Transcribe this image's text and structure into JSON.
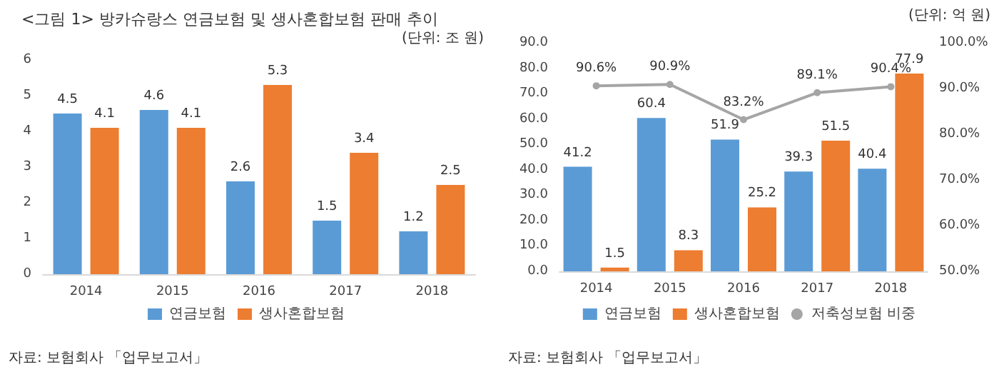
{
  "chart_data": [
    {
      "type": "bar",
      "title": "<그림 1> 방카슈랑스 연금보험 및 생사혼합보험 판매 추이",
      "annotations": [
        "(단위: 조 원)",
        "자료: 보험회사 「업무보고서」"
      ],
      "categories": [
        "2014",
        "2015",
        "2016",
        "2017",
        "2018"
      ],
      "series": [
        {
          "name": "연금보험",
          "color": "#5b9bd5",
          "values": [
            4.5,
            4.6,
            2.6,
            1.5,
            1.2
          ]
        },
        {
          "name": "생사혼합보험",
          "color": "#ed7d31",
          "values": [
            4.1,
            4.1,
            5.3,
            3.4,
            2.5
          ]
        }
      ],
      "ylim": [
        0,
        6
      ],
      "yticks": [
        0,
        1,
        2,
        3,
        4,
        5,
        6
      ],
      "data_labels": true,
      "legend": "bottom",
      "grid": false
    },
    {
      "type": "bar",
      "annotations": [
        "(단위: 억 원)",
        "자료: 보험회사 「업무보고서」"
      ],
      "categories": [
        "2014",
        "2015",
        "2016",
        "2017",
        "2018"
      ],
      "series": [
        {
          "name": "연금보험",
          "color": "#5b9bd5",
          "values": [
            41.2,
            60.4,
            51.9,
            39.3,
            40.4
          ],
          "value_labels": [
            "41.2",
            "60.4",
            "51.9",
            "39.3",
            "40.4"
          ]
        },
        {
          "name": "생사혼합보험",
          "color": "#ed7d31",
          "values": [
            1.5,
            8.3,
            25.2,
            51.5,
            77.9
          ],
          "value_labels": [
            "1.5",
            "8.3",
            "25.2",
            "51.5",
            "77.9"
          ]
        },
        {
          "name": "저축성보험 비중",
          "type": "line",
          "axis": "y2",
          "color": "#a5a5a5",
          "values": [
            90.6,
            90.9,
            83.2,
            89.1,
            90.4
          ],
          "value_labels": [
            "90.6%",
            "90.9%",
            "83.2%",
            "89.1%",
            "90.4%"
          ]
        }
      ],
      "ylim": [
        0,
        90
      ],
      "yticks": [
        {
          "value": 0,
          "label": "0.0"
        },
        {
          "value": 10,
          "label": "10.0"
        },
        {
          "value": 20,
          "label": "20.0"
        },
        {
          "value": 30,
          "label": "30.0"
        },
        {
          "value": 40,
          "label": "40.0"
        },
        {
          "value": 50,
          "label": "50.0"
        },
        {
          "value": 60,
          "label": "60.0"
        },
        {
          "value": 70,
          "label": "70.0"
        },
        {
          "value": 80,
          "label": "80.0"
        },
        {
          "value": 90,
          "label": "90.0"
        }
      ],
      "y2lim": [
        50,
        100
      ],
      "y2ticks": [
        {
          "value": 50,
          "label": "50.0%"
        },
        {
          "value": 60,
          "label": "60.0%"
        },
        {
          "value": 70,
          "label": "70.0%"
        },
        {
          "value": 80,
          "label": "80.0%"
        },
        {
          "value": 90,
          "label": "90.0%"
        },
        {
          "value": 100,
          "label": "100.0%"
        }
      ],
      "marker": "circle",
      "legend": "bottom",
      "grid": false
    }
  ]
}
